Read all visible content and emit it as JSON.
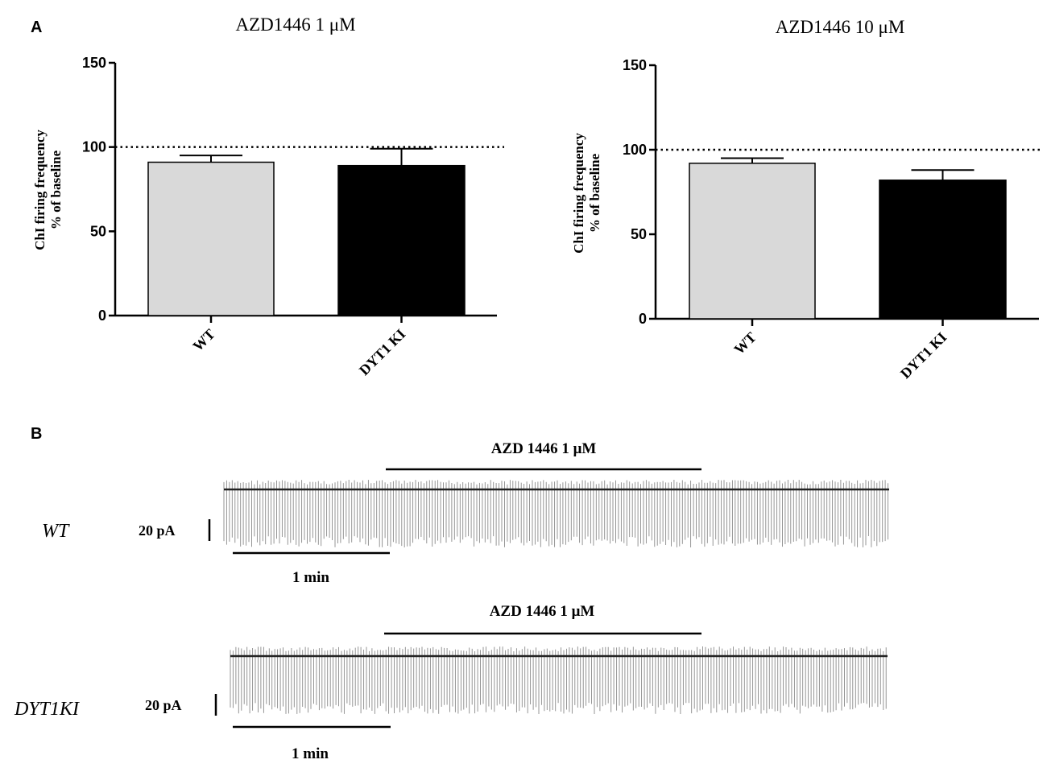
{
  "panels": {
    "a_label": "A",
    "b_label": "B"
  },
  "chart_data": [
    {
      "type": "bar",
      "title": "AZD1446 1 μM",
      "ylabel_line1": "ChI firing frequency",
      "ylabel_line2": "% of baseline",
      "categories": [
        "WT",
        "DYT1 KI"
      ],
      "values": [
        91,
        89
      ],
      "errors": [
        4,
        10
      ],
      "colors": [
        "#d9d9d9",
        "#000000"
      ],
      "reference_line": 100,
      "ylim": [
        0,
        150
      ],
      "yticks": [
        "0",
        "50",
        "100",
        "150"
      ]
    },
    {
      "type": "bar",
      "title": "AZD1446 10 μM",
      "ylabel_line1": "ChI firing frequency",
      "ylabel_line2": "% of baseline",
      "categories": [
        "WT",
        "DYT1 KI"
      ],
      "values": [
        92,
        82
      ],
      "errors": [
        3,
        6
      ],
      "colors": [
        "#d9d9d9",
        "#000000"
      ],
      "reference_line": 100,
      "ylim": [
        0,
        150
      ],
      "yticks": [
        "0",
        "50",
        "100",
        "150"
      ]
    }
  ],
  "traces": [
    {
      "label": "WT",
      "drug_label": "AZD 1446 1 μM",
      "scale_current": "20 pA",
      "scale_time": "1 min"
    },
    {
      "label": "DYT1KI",
      "drug_label": "AZD 1446 1 μM",
      "scale_current": "20 pA",
      "scale_time": "1 min"
    }
  ]
}
